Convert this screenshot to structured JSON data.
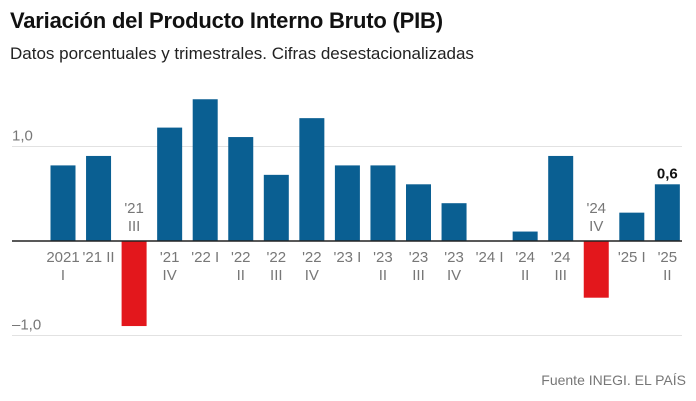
{
  "chart_data": {
    "type": "bar",
    "title": "Variación del Producto Interno Bruto (PIB)",
    "subtitle": "Datos porcentuales y trimestrales. Cifras desestacionalizadas",
    "source": "Fuente INEGI. EL PAÍS",
    "categories": [
      [
        "2021",
        "I"
      ],
      [
        "'21 II"
      ],
      [
        "'21",
        "III"
      ],
      [
        "'21",
        "IV"
      ],
      [
        "'22 I"
      ],
      [
        "'22",
        "II"
      ],
      [
        "'22",
        "III"
      ],
      [
        "'22",
        "IV"
      ],
      [
        "'23 I"
      ],
      [
        "'23",
        "II"
      ],
      [
        "'23",
        "III"
      ],
      [
        "'23",
        "IV"
      ],
      [
        "'24 I"
      ],
      [
        "'24",
        "II"
      ],
      [
        "'24",
        "III"
      ],
      [
        "'24",
        "IV"
      ],
      [
        "'25 I"
      ],
      [
        "'25",
        "II"
      ]
    ],
    "values": [
      0.8,
      0.9,
      -0.9,
      1.2,
      1.5,
      1.1,
      0.7,
      1.3,
      0.8,
      0.8,
      0.6,
      0.4,
      0.0,
      0.1,
      0.9,
      -0.6,
      0.3,
      0.6
    ],
    "ylim": [
      -1.0,
      1.5
    ],
    "yticks": [
      {
        "value": 1.0,
        "label": "1,0"
      },
      {
        "value": -1.0,
        "label": "–1,0"
      }
    ],
    "highlight_label": {
      "index": 17,
      "text": "0,6"
    },
    "grid": true,
    "colors": {
      "positive": "#0a5f92",
      "negative": "#e3171c",
      "gridline": "#e2e2e2",
      "zero_line": "#222222"
    }
  }
}
